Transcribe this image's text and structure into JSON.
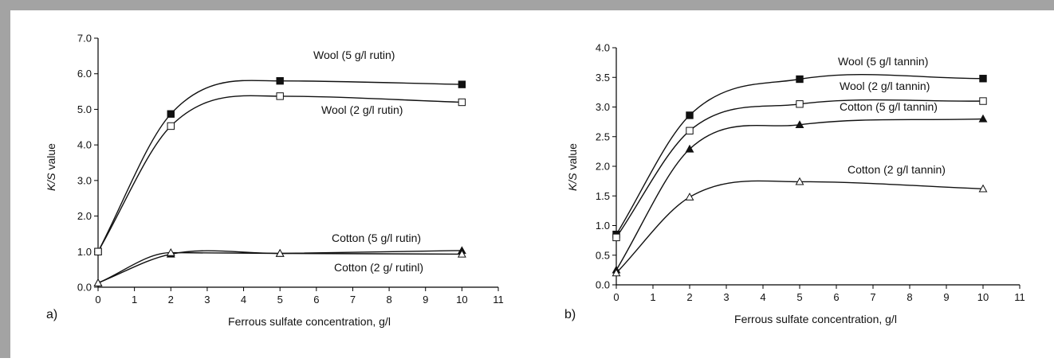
{
  "colors": {
    "frame": "#a3a3a3",
    "ink": "#111111",
    "background": "#ffffff"
  },
  "chart_data": [
    {
      "type": "line",
      "panel_label": "a)",
      "xlabel": "Ferrous sulfate concentration, g/l",
      "ylabel_italic": "K/S",
      "ylabel_rest": " value",
      "xlim": [
        0,
        11
      ],
      "ylim": [
        0,
        7
      ],
      "x_ticks": [
        0,
        1,
        2,
        3,
        4,
        5,
        6,
        7,
        8,
        9,
        10,
        11
      ],
      "y_ticks": [
        "0.0",
        "1.0",
        "2.0",
        "3.0",
        "4.0",
        "5.0",
        "6.0",
        "7.0"
      ],
      "grid": false,
      "series": [
        {
          "name": "Wool (5 g/l rutin)",
          "marker": "filled-square",
          "x": [
            0,
            2,
            5,
            10
          ],
          "y": [
            1.0,
            4.87,
            5.8,
            5.7
          ]
        },
        {
          "name": "Wool (2 g/l rutin)",
          "marker": "open-square",
          "x": [
            0,
            2,
            5,
            10
          ],
          "y": [
            1.0,
            4.53,
            5.37,
            5.2
          ]
        },
        {
          "name": "Cotton (5 g/l rutin)",
          "marker": "filled-triangle",
          "x": [
            0,
            2,
            5,
            10
          ],
          "y": [
            0.12,
            0.93,
            0.95,
            1.03
          ]
        },
        {
          "name": "Cotton (2 g/ rutinl)",
          "marker": "open-triangle",
          "x": [
            0,
            2,
            5,
            10
          ],
          "y": [
            0.12,
            0.97,
            0.95,
            0.93
          ]
        }
      ]
    },
    {
      "type": "line",
      "panel_label": "b)",
      "xlabel": "Ferrous sulfate concentration, g/l",
      "ylabel_italic": "K/S",
      "ylabel_rest": " value",
      "xlim": [
        0,
        11
      ],
      "ylim": [
        0,
        4
      ],
      "x_ticks": [
        0,
        1,
        2,
        3,
        4,
        5,
        6,
        7,
        8,
        9,
        10,
        11
      ],
      "y_ticks": [
        "0.0",
        "0.5",
        "1.0",
        "1.5",
        "2.0",
        "2.5",
        "3.0",
        "3.5",
        "4.0"
      ],
      "grid": false,
      "series": [
        {
          "name": "Wool (5 g/l tannin)",
          "marker": "filled-square",
          "x": [
            0,
            2,
            5,
            10
          ],
          "y": [
            0.85,
            2.86,
            3.47,
            3.48
          ]
        },
        {
          "name": "Wool (2 g/l tannin)",
          "marker": "open-square",
          "x": [
            0,
            2,
            5,
            10
          ],
          "y": [
            0.8,
            2.6,
            3.05,
            3.1
          ]
        },
        {
          "name": "Cotton (5 g/l tannin)",
          "marker": "filled-triangle",
          "x": [
            0,
            2,
            5,
            10
          ],
          "y": [
            0.25,
            2.29,
            2.7,
            2.8
          ]
        },
        {
          "name": "Cotton (2 g/l tannin)",
          "marker": "open-triangle",
          "x": [
            0,
            2,
            5,
            10
          ],
          "y": [
            0.2,
            1.48,
            1.74,
            1.62
          ]
        }
      ]
    }
  ]
}
